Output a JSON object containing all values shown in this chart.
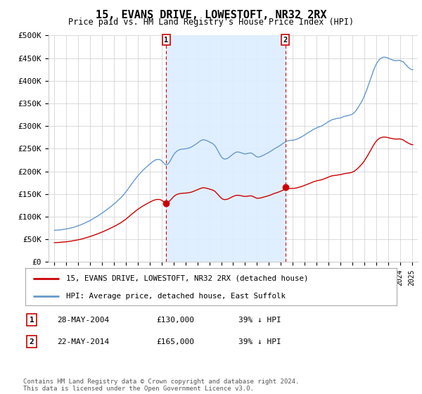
{
  "title": "15, EVANS DRIVE, LOWESTOFT, NR32 2RX",
  "subtitle": "Price paid vs. HM Land Registry's House Price Index (HPI)",
  "ylabel_ticks": [
    "£0",
    "£50K",
    "£100K",
    "£150K",
    "£200K",
    "£250K",
    "£300K",
    "£350K",
    "£400K",
    "£450K",
    "£500K"
  ],
  "ytick_values": [
    0,
    50000,
    100000,
    150000,
    200000,
    250000,
    300000,
    350000,
    400000,
    450000,
    500000
  ],
  "ylim": [
    0,
    500000
  ],
  "hpi_color": "#6699cc",
  "hpi_fill_color": "#ddeeff",
  "price_color": "#cc0000",
  "dashed_color": "#cc0000",
  "marker1_x": 2004.38,
  "marker1_y": 130000,
  "marker2_x": 2014.38,
  "marker2_y": 165000,
  "legend_line1": "15, EVANS DRIVE, LOWESTOFT, NR32 2RX (detached house)",
  "legend_line2": "HPI: Average price, detached house, East Suffolk",
  "table_rows": [
    [
      "1",
      "28-MAY-2004",
      "£130,000",
      "39% ↓ HPI"
    ],
    [
      "2",
      "22-MAY-2014",
      "£165,000",
      "39% ↓ HPI"
    ]
  ],
  "footnote": "Contains HM Land Registry data © Crown copyright and database right 2024.\nThis data is licensed under the Open Government Licence v3.0.",
  "background_color": "#ffffff",
  "grid_color": "#cccccc",
  "xlim_start": 1994.5,
  "xlim_end": 2025.5
}
